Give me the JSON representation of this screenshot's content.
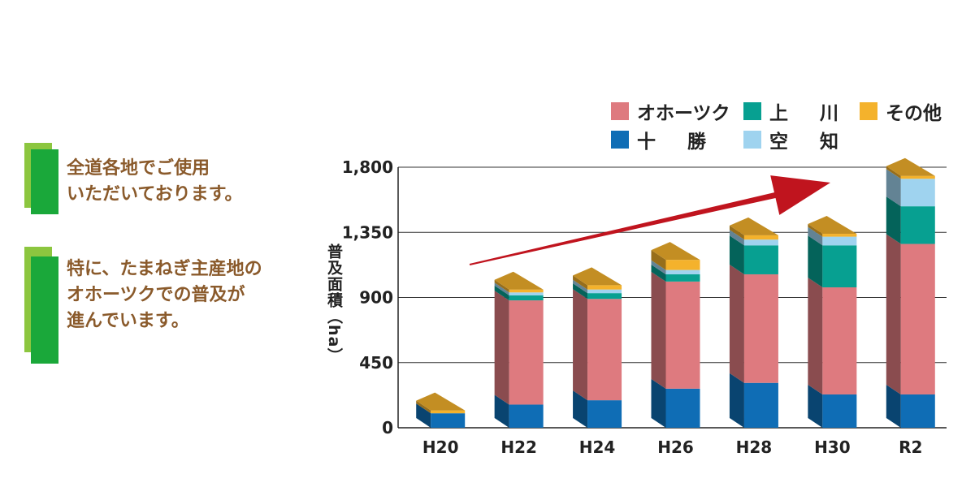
{
  "notes": [
    {
      "lines": [
        "全道各地でご使用",
        "いただいております。"
      ]
    },
    {
      "lines": [
        "特に、たまねぎ主産地の",
        "オホーツクでの普及が",
        "進んでいます。"
      ]
    }
  ],
  "colors": {
    "okhotsk": "#de7a7f",
    "tokachi": "#0f6db5",
    "kamikawa": "#07a091",
    "sorachi": "#9fd3ef",
    "other": "#f4b22c",
    "arrow": "#c0141e",
    "note_text": "#8a5a2b",
    "note_bar": "#1aa83a"
  },
  "chart_data": {
    "type": "bar",
    "stacked": true,
    "style": "3d",
    "categories": [
      "H20",
      "H22",
      "H24",
      "H26",
      "H28",
      "H30",
      "R2"
    ],
    "series": [
      {
        "name": "十　勝",
        "key": "tokachi",
        "values": [
          100,
          160,
          190,
          270,
          310,
          230,
          230
        ]
      },
      {
        "name": "オホーツク",
        "key": "okhotsk",
        "values": [
          0,
          720,
          700,
          740,
          750,
          740,
          1040
        ]
      },
      {
        "name": "上　川",
        "key": "kamikawa",
        "values": [
          0,
          35,
          40,
          50,
          200,
          290,
          260
        ]
      },
      {
        "name": "空　知",
        "key": "sorachi",
        "values": [
          0,
          20,
          25,
          30,
          40,
          60,
          190
        ]
      },
      {
        "name": "その他",
        "key": "other",
        "values": [
          20,
          20,
          30,
          70,
          30,
          20,
          20
        ]
      }
    ],
    "legend_rows": [
      [
        "オホーツク",
        "上　川",
        "その他"
      ],
      [
        "十　勝",
        "空　知"
      ]
    ],
    "legend_keys": [
      [
        "okhotsk",
        "kamikawa",
        "other"
      ],
      [
        "tokachi",
        "sorachi"
      ]
    ],
    "yticks": [
      "0",
      "450",
      "900",
      "1,350",
      "1,800"
    ],
    "ytick_values": [
      0,
      450,
      900,
      1350,
      1800
    ],
    "ylim": [
      0,
      1800
    ],
    "ylabel": "普及面積（ha）",
    "xlabel": "",
    "grid": true,
    "legend_position": "top-right",
    "trend_arrow": true
  }
}
